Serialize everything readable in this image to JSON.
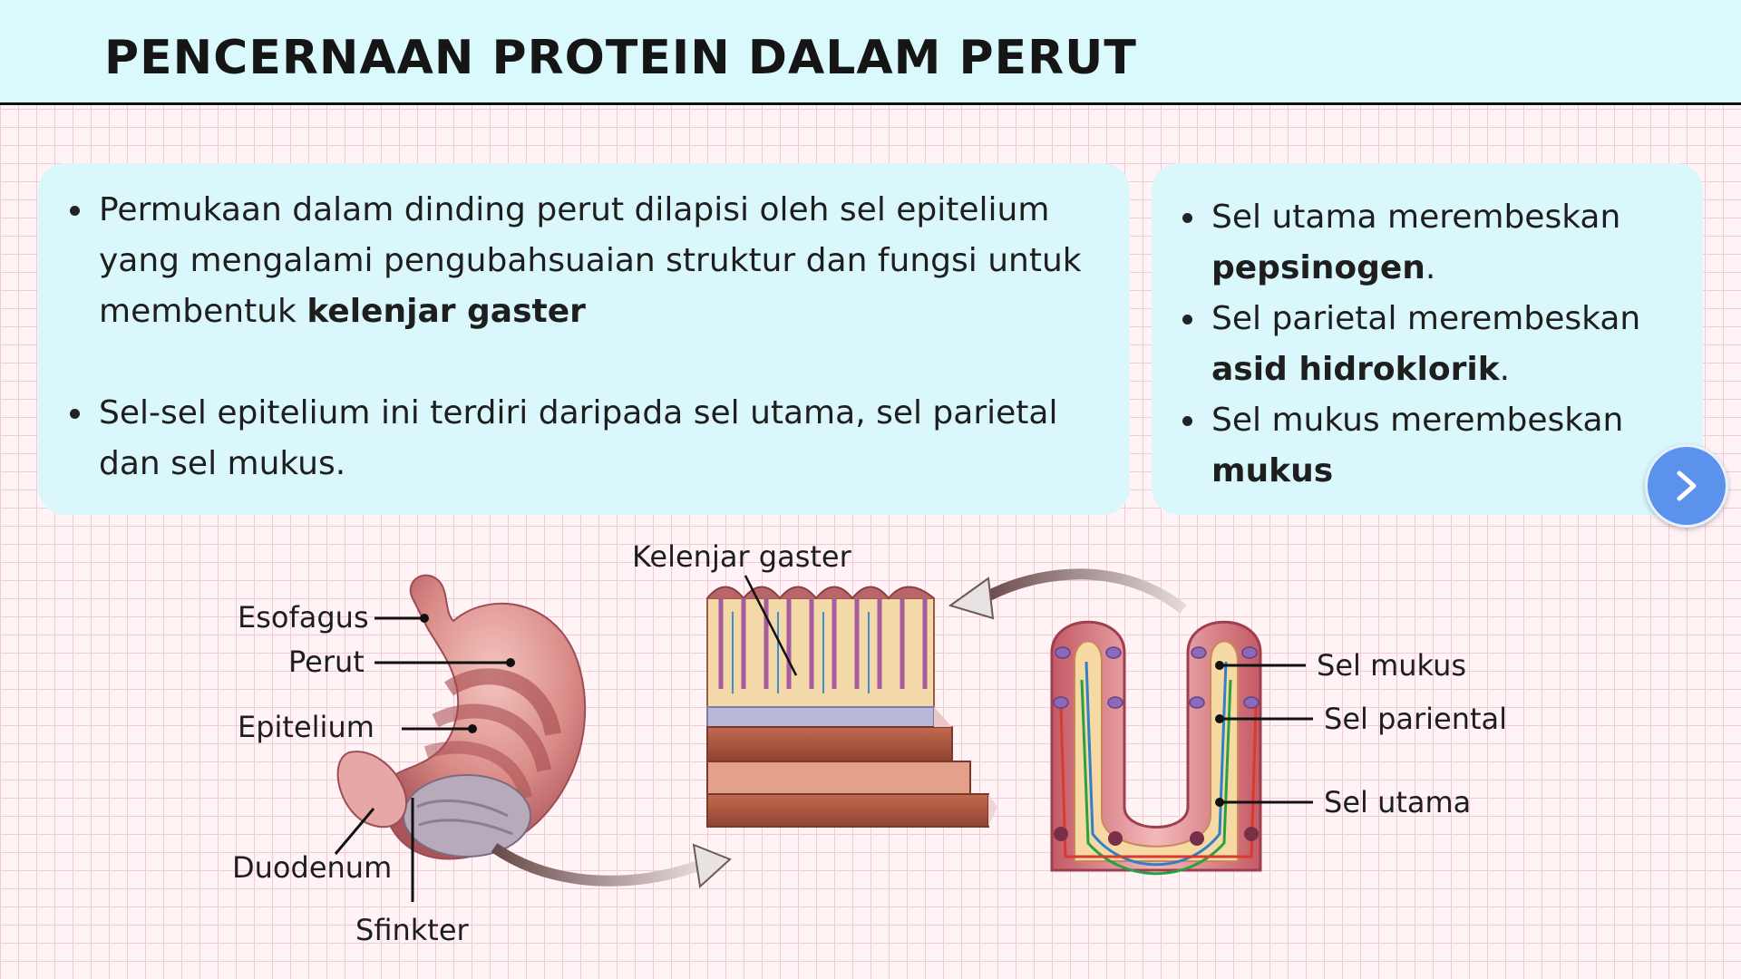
{
  "slide": {
    "title": "PENCERNAAN PROTEIN DALAM PERUT"
  },
  "left_card": {
    "bullet1_text": "Permukaan dalam dinding perut dilapisi oleh sel epitelium yang mengalami pengubahsuaian struktur dan fungsi untuk membentuk ",
    "bullet1_bold": "kelenjar gaster",
    "bullet2_text": "Sel-sel epitelium ini terdiri daripada sel utama, sel parietal dan sel mukus."
  },
  "right_card": {
    "item1_text": "Sel utama merembeskan ",
    "item1_bold": "pepsinogen",
    "item1_end": ".",
    "item2_text": "Sel parietal merembeskan ",
    "item2_bold": "asid hidroklorik",
    "item2_end": ".",
    "item3_text": "Sel mukus merembeskan ",
    "item3_bold": "mukus"
  },
  "diagram": {
    "labels": {
      "esofagus": "Esofagus",
      "perut": "Perut",
      "epitelium": "Epitelium",
      "duodenum": "Duodenum",
      "sfinkter": "Sfinkter",
      "kelenjar_gaster": "Kelenjar gaster",
      "sel_mukus": "Sel mukus",
      "sel_pariental": "Sel pariental",
      "sel_utama": "Sel utama"
    }
  },
  "colors": {
    "header_bg": "#d9f9fd",
    "card_bg": "#daf8fc",
    "next_button": "#5b93ec"
  },
  "icons": {
    "next": "chevron-right-icon"
  }
}
